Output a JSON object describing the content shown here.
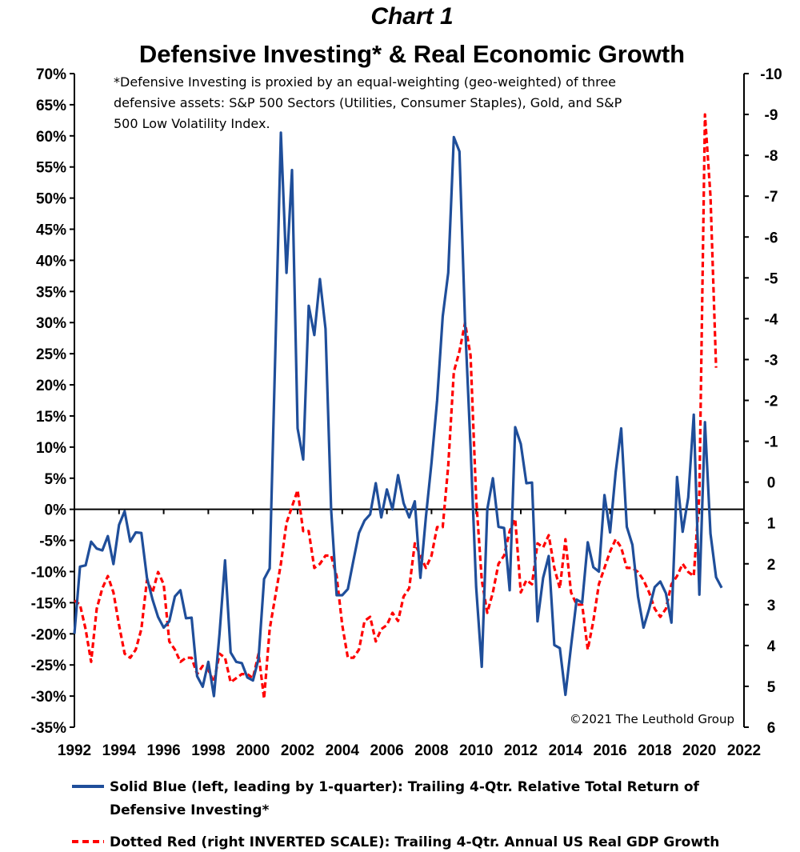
{
  "chart_data": {
    "type": "line",
    "title": "Chart 1",
    "subtitle": "Defensive Investing* & Real Economic Growth",
    "note_lines": [
      "*Defensive Investing is proxied by an equal-weighting (geo-weighted) of three",
      "defensive assets: S&P 500 Sectors (Utilities, Consumer Staples), Gold, and S&P",
      "500 Low Volatility Index."
    ],
    "copyright": "©2021 The Leuthold Group",
    "x_ticks": [
      "1992",
      "1994",
      "1996",
      "1998",
      "2000",
      "2002",
      "2004",
      "2006",
      "2008",
      "2010",
      "2012",
      "2014",
      "2016",
      "2018",
      "2020",
      "2022"
    ],
    "xlim": [
      1992,
      2022
    ],
    "left_axis": {
      "ylim": [
        -35,
        70
      ],
      "ticks": [
        "70%",
        "65%",
        "60%",
        "55%",
        "50%",
        "45%",
        "40%",
        "35%",
        "30%",
        "25%",
        "20%",
        "15%",
        "10%",
        "5%",
        "0%",
        "-5%",
        "-10%",
        "-15%",
        "-20%",
        "-25%",
        "-30%",
        "-35%"
      ]
    },
    "right_axis": {
      "inverted": true,
      "ylim": [
        6,
        -10
      ],
      "ticks": [
        "-10",
        "-9",
        "-8",
        "-7",
        "-6",
        "-5",
        "-4",
        "-3",
        "-2",
        "-1",
        "0",
        "1",
        "2",
        "3",
        "4",
        "5",
        "6"
      ]
    },
    "legend": [
      {
        "color": "#1f4e9a",
        "style": "solid",
        "lines": [
          "Solid Blue (left, leading by 1-quarter): Trailing 4-Qtr. Relative Total Return of",
          "Defensive Investing*"
        ]
      },
      {
        "color": "#ff0000",
        "style": "dashed",
        "lines": [
          "Dotted Red (right INVERTED SCALE): Trailing 4-Qtr. Annual US Real GDP Growth"
        ]
      }
    ],
    "series": [
      {
        "axis": "left",
        "color": "#1f4e9a",
        "points": [
          [
            1992.0,
            -20
          ],
          [
            1992.25,
            -9.2
          ],
          [
            1992.5,
            -9
          ],
          [
            1992.75,
            -5.2
          ],
          [
            1993.0,
            -6.3
          ],
          [
            1993.25,
            -6.6
          ],
          [
            1993.5,
            -4.3
          ],
          [
            1993.75,
            -8.8
          ],
          [
            1994.0,
            -2.5
          ],
          [
            1994.25,
            -0.3
          ],
          [
            1994.5,
            -5.2
          ],
          [
            1994.75,
            -3.7
          ],
          [
            1995.0,
            -3.8
          ],
          [
            1995.25,
            -11
          ],
          [
            1995.5,
            -14.5
          ],
          [
            1995.75,
            -17.3
          ],
          [
            1996.0,
            -19
          ],
          [
            1996.25,
            -18
          ],
          [
            1996.5,
            -14
          ],
          [
            1996.75,
            -13
          ],
          [
            1997.0,
            -17.5
          ],
          [
            1997.25,
            -17.4
          ],
          [
            1997.5,
            -26.8
          ],
          [
            1997.75,
            -28.5
          ],
          [
            1998.0,
            -24.5
          ],
          [
            1998.25,
            -30
          ],
          [
            1998.5,
            -20
          ],
          [
            1998.75,
            -8.2
          ],
          [
            1999.0,
            -23
          ],
          [
            1999.25,
            -24.5
          ],
          [
            1999.5,
            -24.7
          ],
          [
            1999.75,
            -27
          ],
          [
            2000.0,
            -27.5
          ],
          [
            2000.25,
            -24
          ],
          [
            2000.5,
            -11.2
          ],
          [
            2000.75,
            -9.5
          ],
          [
            2001.0,
            25
          ],
          [
            2001.25,
            60.5
          ],
          [
            2001.5,
            38
          ],
          [
            2001.75,
            54.5
          ],
          [
            2002.0,
            13
          ],
          [
            2002.25,
            8
          ],
          [
            2002.5,
            32.7
          ],
          [
            2002.75,
            28
          ],
          [
            2003.0,
            37
          ],
          [
            2003.25,
            29
          ],
          [
            2003.5,
            0
          ],
          [
            2003.75,
            -13.8
          ],
          [
            2004.0,
            -13.8
          ],
          [
            2004.25,
            -12.8
          ],
          [
            2004.5,
            -8.2
          ],
          [
            2004.75,
            -3.8
          ],
          [
            2005.0,
            -1.8
          ],
          [
            2005.25,
            -0.8
          ],
          [
            2005.5,
            4.2
          ],
          [
            2005.75,
            -1.3
          ],
          [
            2006.0,
            3.2
          ],
          [
            2006.25,
            0
          ],
          [
            2006.5,
            5.5
          ],
          [
            2006.75,
            1
          ],
          [
            2007.0,
            -1.3
          ],
          [
            2007.25,
            1.3
          ],
          [
            2007.5,
            -11
          ],
          [
            2007.75,
            -1.2
          ],
          [
            2008.0,
            7.5
          ],
          [
            2008.25,
            17.5
          ],
          [
            2008.5,
            31
          ],
          [
            2008.75,
            38
          ],
          [
            2009.0,
            59.8
          ],
          [
            2009.25,
            57.5
          ],
          [
            2009.5,
            30
          ],
          [
            2009.75,
            10
          ],
          [
            2010.0,
            -12.5
          ],
          [
            2010.25,
            -25.3
          ],
          [
            2010.5,
            0
          ],
          [
            2010.75,
            5
          ],
          [
            2011.0,
            -2.8
          ],
          [
            2011.25,
            -3
          ],
          [
            2011.5,
            -13
          ],
          [
            2011.75,
            13.2
          ],
          [
            2012.0,
            10.5
          ],
          [
            2012.25,
            4.2
          ],
          [
            2012.5,
            4.3
          ],
          [
            2012.75,
            -18
          ],
          [
            2013.0,
            -11
          ],
          [
            2013.25,
            -7.5
          ],
          [
            2013.5,
            -21.8
          ],
          [
            2013.75,
            -22.3
          ],
          [
            2014.0,
            -29.8
          ],
          [
            2014.25,
            -22
          ],
          [
            2014.5,
            -14.5
          ],
          [
            2014.75,
            -15
          ],
          [
            2015.0,
            -5.3
          ],
          [
            2015.25,
            -9.3
          ],
          [
            2015.5,
            -10
          ],
          [
            2015.75,
            2.3
          ],
          [
            2016.0,
            -3.7
          ],
          [
            2016.25,
            6
          ],
          [
            2016.5,
            13
          ],
          [
            2016.75,
            -2.8
          ],
          [
            2017.0,
            -5.7
          ],
          [
            2017.25,
            -14
          ],
          [
            2017.5,
            -19
          ],
          [
            2017.75,
            -16
          ],
          [
            2018.0,
            -12.5
          ],
          [
            2018.25,
            -11.6
          ],
          [
            2018.5,
            -13.5
          ],
          [
            2018.75,
            -18.2
          ],
          [
            2019.0,
            5.2
          ],
          [
            2019.25,
            -3.6
          ],
          [
            2019.5,
            1.9
          ],
          [
            2019.75,
            15.2
          ],
          [
            2020.0,
            -13.7
          ],
          [
            2020.25,
            14
          ],
          [
            2020.5,
            -3.9
          ],
          [
            2020.75,
            -10.9
          ],
          [
            2021.0,
            -12.6
          ]
        ]
      },
      {
        "axis": "right",
        "color": "#ff0000",
        "points": [
          [
            1992.0,
            2.9
          ],
          [
            1992.25,
            3.0
          ],
          [
            1992.5,
            3.6
          ],
          [
            1992.75,
            4.4
          ],
          [
            1993.0,
            3.1
          ],
          [
            1993.25,
            2.6
          ],
          [
            1993.5,
            2.3
          ],
          [
            1993.75,
            2.7
          ],
          [
            1994.0,
            3.5
          ],
          [
            1994.25,
            4.2
          ],
          [
            1994.5,
            4.3
          ],
          [
            1994.75,
            4.1
          ],
          [
            1995.0,
            3.6
          ],
          [
            1995.25,
            2.4
          ],
          [
            1995.5,
            2.7
          ],
          [
            1995.75,
            2.2
          ],
          [
            1996.0,
            2.5
          ],
          [
            1996.25,
            3.9
          ],
          [
            1996.5,
            4.1
          ],
          [
            1996.75,
            4.4
          ],
          [
            1997.0,
            4.3
          ],
          [
            1997.25,
            4.3
          ],
          [
            1997.5,
            4.7
          ],
          [
            1997.75,
            4.5
          ],
          [
            1998.0,
            4.6
          ],
          [
            1998.25,
            4.9
          ],
          [
            1998.5,
            4.2
          ],
          [
            1998.75,
            4.3
          ],
          [
            1999.0,
            4.9
          ],
          [
            1999.25,
            4.8
          ],
          [
            1999.5,
            4.7
          ],
          [
            1999.75,
            4.7
          ],
          [
            2000.0,
            4.8
          ],
          [
            2000.25,
            4.2
          ],
          [
            2000.5,
            5.3
          ],
          [
            2000.75,
            3.6
          ],
          [
            2001.0,
            2.8
          ],
          [
            2001.25,
            2.0
          ],
          [
            2001.5,
            1.0
          ],
          [
            2001.75,
            0.6
          ],
          [
            2002.0,
            0.2
          ],
          [
            2002.25,
            1.2
          ],
          [
            2002.5,
            1.2
          ],
          [
            2002.75,
            2.1
          ],
          [
            2003.0,
            2.0
          ],
          [
            2003.25,
            1.8
          ],
          [
            2003.5,
            1.8
          ],
          [
            2003.75,
            2.3
          ],
          [
            2004.0,
            3.5
          ],
          [
            2004.25,
            4.3
          ],
          [
            2004.5,
            4.3
          ],
          [
            2004.75,
            4.1
          ],
          [
            2005.0,
            3.4
          ],
          [
            2005.25,
            3.3
          ],
          [
            2005.5,
            3.9
          ],
          [
            2005.75,
            3.6
          ],
          [
            2006.0,
            3.5
          ],
          [
            2006.25,
            3.2
          ],
          [
            2006.5,
            3.4
          ],
          [
            2006.75,
            2.8
          ],
          [
            2007.0,
            2.6
          ],
          [
            2007.25,
            1.5
          ],
          [
            2007.5,
            1.8
          ],
          [
            2007.75,
            2.1
          ],
          [
            2008.0,
            1.8
          ],
          [
            2008.25,
            1.1
          ],
          [
            2008.5,
            1.1
          ],
          [
            2008.75,
            -0.4
          ],
          [
            2009.0,
            -2.7
          ],
          [
            2009.25,
            -3.2
          ],
          [
            2009.5,
            -3.9
          ],
          [
            2009.75,
            -3.1
          ],
          [
            2010.0,
            0.4
          ],
          [
            2010.25,
            2.4
          ],
          [
            2010.5,
            3.2
          ],
          [
            2010.75,
            2.7
          ],
          [
            2011.0,
            2.0
          ],
          [
            2011.25,
            1.8
          ],
          [
            2011.5,
            1.2
          ],
          [
            2011.75,
            0.9
          ],
          [
            2012.0,
            2.7
          ],
          [
            2012.25,
            2.4
          ],
          [
            2012.5,
            2.5
          ],
          [
            2012.75,
            1.5
          ],
          [
            2013.0,
            1.6
          ],
          [
            2013.25,
            1.3
          ],
          [
            2013.5,
            2.1
          ],
          [
            2013.75,
            2.6
          ],
          [
            2014.0,
            1.4
          ],
          [
            2014.25,
            2.7
          ],
          [
            2014.5,
            3.0
          ],
          [
            2014.75,
            3.0
          ],
          [
            2015.0,
            4.1
          ],
          [
            2015.25,
            3.4
          ],
          [
            2015.5,
            2.5
          ],
          [
            2015.75,
            2.1
          ],
          [
            2016.0,
            1.7
          ],
          [
            2016.25,
            1.4
          ],
          [
            2016.5,
            1.6
          ],
          [
            2016.75,
            2.1
          ],
          [
            2017.0,
            2.1
          ],
          [
            2017.25,
            2.2
          ],
          [
            2017.5,
            2.4
          ],
          [
            2017.75,
            2.7
          ],
          [
            2018.0,
            3.1
          ],
          [
            2018.25,
            3.3
          ],
          [
            2018.5,
            3.1
          ],
          [
            2018.75,
            2.5
          ],
          [
            2019.0,
            2.3
          ],
          [
            2019.25,
            2.0
          ],
          [
            2019.5,
            2.2
          ],
          [
            2019.75,
            2.3
          ],
          [
            2020.0,
            0.3
          ],
          [
            2020.25,
            -9.0
          ],
          [
            2020.5,
            -7.0
          ],
          [
            2020.75,
            -2.8
          ]
        ]
      }
    ]
  }
}
